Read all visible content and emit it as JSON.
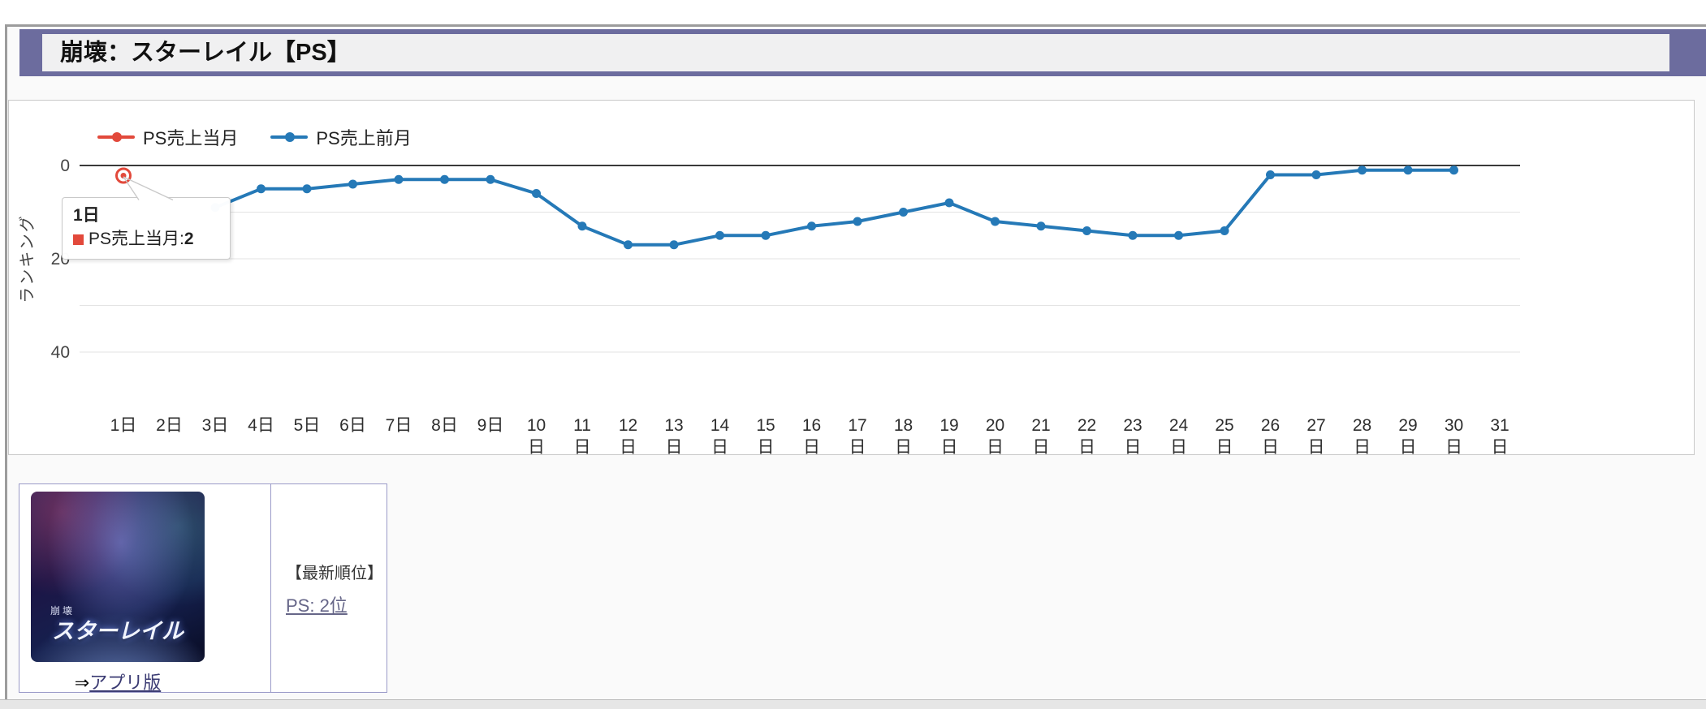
{
  "page": {
    "title": "崩壊：スターレイル【PS】"
  },
  "chart": {
    "legend": [
      {
        "label": "PS売上当月",
        "color": "#e2493b"
      },
      {
        "label": "PS売上前月",
        "color": "#2579b7"
      }
    ],
    "chart_data": {
      "type": "line",
      "title": "",
      "xlabel": "",
      "ylabel": "ランキング",
      "y_inverted": true,
      "ylim": [
        0,
        40
      ],
      "y_ticks": [
        0,
        20,
        40
      ],
      "grid_ranks": [
        0,
        10,
        20,
        30,
        40
      ],
      "legend_position": "top-left",
      "categories": [
        "1日",
        "2日",
        "3日",
        "4日",
        "5日",
        "6日",
        "7日",
        "8日",
        "9日",
        "10日",
        "11日",
        "12日",
        "13日",
        "14日",
        "15日",
        "16日",
        "17日",
        "18日",
        "19日",
        "20日",
        "21日",
        "22日",
        "23日",
        "24日",
        "25日",
        "26日",
        "27日",
        "28日",
        "29日",
        "30日",
        "31日"
      ],
      "series": [
        {
          "name": "PS売上当月",
          "color": "#e2493b",
          "marker": "ring",
          "values": [
            2,
            null,
            null,
            null,
            null,
            null,
            null,
            null,
            null,
            null,
            null,
            null,
            null,
            null,
            null,
            null,
            null,
            null,
            null,
            null,
            null,
            null,
            null,
            null,
            null,
            null,
            null,
            null,
            null,
            null,
            null
          ]
        },
        {
          "name": "PS売上前月",
          "color": "#2579b7",
          "marker": "dot",
          "values": [
            null,
            null,
            9,
            5,
            5,
            4,
            3,
            3,
            3,
            6,
            13,
            17,
            17,
            15,
            15,
            13,
            12,
            10,
            8,
            12,
            13,
            14,
            15,
            15,
            14,
            2,
            2,
            1,
            1,
            1,
            null
          ]
        }
      ]
    }
  },
  "tooltip": {
    "day_label": "1日",
    "series_label": "PS売上当月",
    "separator": ": ",
    "value": "2",
    "marker_color": "#e2493b"
  },
  "info_card": {
    "cover_title_small": "崩壊",
    "cover_title": "スターレイル",
    "app_link_arrow": "⇒",
    "app_link_label": "アプリ版",
    "latest_rank_heading": "【最新順位】",
    "latest_rank_link": "PS: 2位"
  },
  "colors": {
    "title_band": "#6c6c9e",
    "card_border": "#9a9ac8",
    "zero_line": "#3a3a3a",
    "gridline": "#e3e3e3",
    "app_link": "#3b3b73",
    "rank_link": "#666688"
  }
}
